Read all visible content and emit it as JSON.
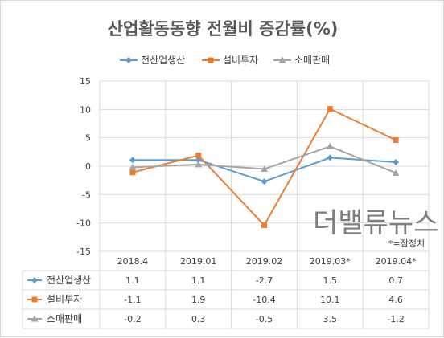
{
  "chart_data": {
    "type": "line",
    "title": "산업활동동향 전월비 증감률(%)",
    "categories": [
      "2018.4",
      "2019.01",
      "2019.02",
      "2019.03*",
      "2019.04*"
    ],
    "series": [
      {
        "name": "전산업생산",
        "values": [
          1.1,
          1.1,
          -2.7,
          1.5,
          0.7
        ],
        "labels": [
          "1.1",
          "1.1",
          "-2.7",
          "1.5",
          "0.7"
        ],
        "color": "#5b9bd5",
        "marker": "diamond"
      },
      {
        "name": "설비투자",
        "values": [
          -1.1,
          1.9,
          -10.4,
          10.1,
          4.6
        ],
        "labels": [
          "-1.1",
          "1.9",
          "-10.4",
          "10.1",
          "4.6"
        ],
        "color": "#ed7d31",
        "marker": "square"
      },
      {
        "name": "소매판매",
        "values": [
          -0.2,
          0.3,
          -0.5,
          3.5,
          -1.2
        ],
        "labels": [
          "-0.2",
          "0.3",
          "-0.5",
          "3.5",
          "-1.2"
        ],
        "color": "#a5a5a5",
        "marker": "triangle"
      }
    ],
    "ylim": [
      -15,
      15
    ],
    "yticks": [
      15,
      10,
      5,
      0,
      -5,
      -10,
      -15
    ],
    "grid": true,
    "legend_position": "top",
    "data_table": true
  },
  "watermark": "더밸류뉴스",
  "note": "*=잠정치"
}
